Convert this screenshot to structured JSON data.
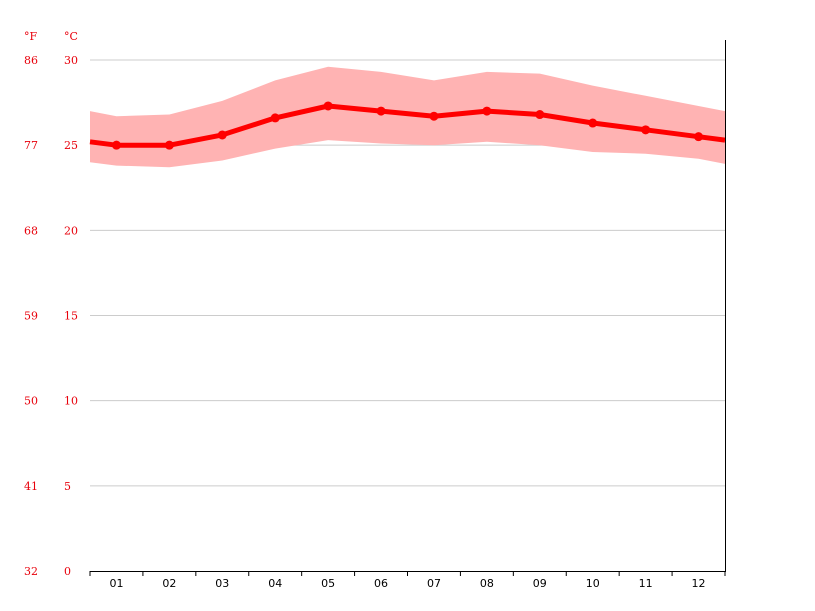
{
  "chart_data": {
    "type": "area",
    "units": {
      "fahrenheit": "°F",
      "celsius": "°C"
    },
    "categories": [
      "01",
      "02",
      "03",
      "04",
      "05",
      "06",
      "07",
      "08",
      "09",
      "10",
      "11",
      "12"
    ],
    "ylim": [
      0,
      30
    ],
    "yticks_celsius": [
      0,
      5,
      10,
      15,
      20,
      25,
      30
    ],
    "yticks_fahrenheit": [
      32,
      41,
      50,
      59,
      68,
      77,
      86
    ],
    "series": [
      {
        "type": "line",
        "values": [
          25.0,
          25.0,
          25.6,
          26.6,
          27.3,
          27.0,
          26.7,
          27.0,
          26.8,
          26.3,
          25.9,
          25.5
        ],
        "start_value": 25.2,
        "end_value": 25.3,
        "color": "#ff0000"
      },
      {
        "type": "band",
        "upper": [
          26.7,
          26.8,
          27.6,
          28.8,
          29.6,
          29.3,
          28.8,
          29.3,
          29.2,
          28.5,
          27.9,
          27.3
        ],
        "lower": [
          23.8,
          23.7,
          24.1,
          24.8,
          25.3,
          25.1,
          25.0,
          25.2,
          25.0,
          24.6,
          24.5,
          24.2
        ],
        "start_upper": 27.0,
        "start_lower": 24.0,
        "end_upper": 27.0,
        "end_lower": 23.9,
        "color": "#ffb3b3"
      }
    ],
    "grid": true,
    "legend": "none"
  }
}
